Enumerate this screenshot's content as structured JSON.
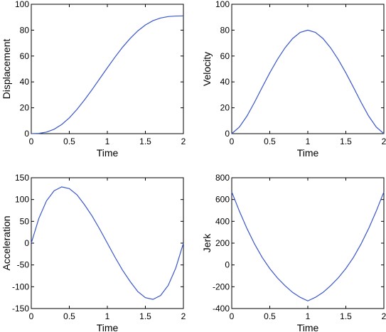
{
  "chart_data": [
    {
      "type": "line",
      "xlabel": "Time",
      "ylabel": "Displacement",
      "xlim": [
        0,
        2
      ],
      "ylim": [
        0,
        100
      ],
      "xticks": [
        "0",
        "0.5",
        "1",
        "1.5",
        "2"
      ],
      "yticks": [
        "0",
        "20",
        "40",
        "60",
        "80",
        "100"
      ],
      "x": [
        0,
        0.1,
        0.2,
        0.3,
        0.4,
        0.5,
        0.6,
        0.7,
        0.8,
        0.9,
        1.0,
        1.1,
        1.2,
        1.3,
        1.4,
        1.5,
        1.6,
        1.7,
        1.8,
        1.9,
        2.0
      ],
      "series": [
        {
          "values": [
            0,
            0.2,
            1.2,
            3.4,
            7.1,
            12.2,
            18.7,
            26.1,
            34.1,
            42.5,
            50.9,
            59.1,
            66.8,
            73.6,
            79.4,
            84.0,
            87.3,
            89.4,
            90.5,
            90.9,
            91.0
          ]
        }
      ],
      "grid": false
    },
    {
      "type": "line",
      "xlabel": "Time",
      "ylabel": "Velocity",
      "xlim": [
        0,
        2
      ],
      "ylim": [
        0,
        100
      ],
      "xticks": [
        "0",
        "0.5",
        "1",
        "1.5",
        "2"
      ],
      "yticks": [
        "0",
        "20",
        "40",
        "60",
        "80",
        "100"
      ],
      "x": [
        0,
        0.1,
        0.2,
        0.3,
        0.4,
        0.5,
        0.6,
        0.7,
        0.8,
        0.9,
        1.0,
        1.1,
        1.2,
        1.3,
        1.4,
        1.5,
        1.6,
        1.7,
        1.8,
        1.9,
        2.0
      ],
      "series": [
        {
          "values": [
            0,
            5.1,
            13.6,
            24.3,
            35.8,
            47.0,
            57.3,
            66.3,
            73.5,
            78.3,
            80.0,
            78.3,
            73.5,
            66.3,
            57.3,
            47.0,
            35.8,
            24.3,
            13.6,
            5.1,
            0
          ]
        }
      ],
      "grid": false
    },
    {
      "type": "line",
      "xlabel": "Time",
      "ylabel": "Acceleration",
      "xlim": [
        0,
        2
      ],
      "ylim": [
        -150,
        150
      ],
      "xticks": [
        "0",
        "0.5",
        "1",
        "1.5",
        "2"
      ],
      "yticks": [
        "-150",
        "-100",
        "-50",
        "0",
        "50",
        "100",
        "150"
      ],
      "x": [
        0,
        0.1,
        0.2,
        0.3,
        0.4,
        0.5,
        0.6,
        0.7,
        0.8,
        0.9,
        1.0,
        1.1,
        1.2,
        1.3,
        1.4,
        1.5,
        1.6,
        1.7,
        1.8,
        1.9,
        2.0
      ],
      "series": [
        {
          "values": [
            0,
            57.0,
            97.0,
            120.0,
            129.0,
            125.0,
            111.0,
            88.0,
            62.0,
            32.0,
            0,
            -32.0,
            -62.0,
            -88.0,
            -111.0,
            -125.0,
            -129.0,
            -120.0,
            -97.0,
            -57.0,
            0
          ]
        }
      ],
      "grid": false
    },
    {
      "type": "line",
      "xlabel": "Time",
      "ylabel": "Jerk",
      "xlim": [
        0,
        2
      ],
      "ylim": [
        -400,
        800
      ],
      "xticks": [
        "0",
        "0.5",
        "1",
        "1.5",
        "2"
      ],
      "yticks": [
        "-400",
        "-200",
        "0",
        "200",
        "400",
        "600",
        "800"
      ],
      "x": [
        0,
        0.1,
        0.2,
        0.3,
        0.4,
        0.5,
        0.6,
        0.7,
        0.8,
        0.9,
        1.0,
        1.1,
        1.2,
        1.3,
        1.4,
        1.5,
        1.6,
        1.7,
        1.8,
        1.9,
        2.0
      ],
      "series": [
        {
          "values": [
            670,
            494,
            334,
            192,
            69,
            -33,
            -119,
            -190,
            -252,
            -297,
            -330,
            -297,
            -252,
            -190,
            -119,
            -33,
            69,
            192,
            334,
            494,
            670
          ]
        }
      ],
      "grid": false
    }
  ],
  "style": {
    "line_color": "#3a56c9",
    "axis_color": "#000000"
  }
}
